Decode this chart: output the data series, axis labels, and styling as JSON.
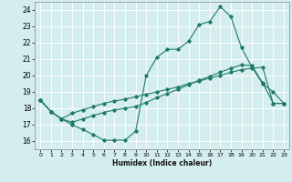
{
  "xlabel": "Humidex (Indice chaleur)",
  "bg_color": "#d4edee",
  "grid_color": "#ffffff",
  "line_color": "#1e7a6a",
  "xlim": [
    -0.5,
    23.5
  ],
  "ylim": [
    15.5,
    24.5
  ],
  "xticks": [
    0,
    1,
    2,
    3,
    4,
    5,
    6,
    7,
    8,
    9,
    10,
    11,
    12,
    13,
    14,
    15,
    16,
    17,
    18,
    19,
    20,
    21,
    22,
    23
  ],
  "yticks": [
    16,
    17,
    18,
    19,
    20,
    21,
    22,
    23,
    24
  ],
  "line1_x": [
    0,
    1,
    2,
    3,
    4,
    5,
    6,
    7,
    8,
    9,
    10,
    11,
    12,
    13,
    14,
    15,
    16,
    17,
    18,
    19,
    20,
    21,
    22,
    23
  ],
  "line1_y": [
    18.5,
    17.8,
    17.35,
    17.0,
    16.7,
    16.4,
    16.05,
    16.05,
    16.05,
    16.6,
    20.0,
    21.1,
    21.6,
    21.6,
    22.1,
    23.1,
    23.3,
    24.2,
    23.6,
    21.7,
    20.5,
    19.5,
    19.0,
    18.3
  ],
  "line2_x": [
    0,
    1,
    2,
    3,
    4,
    5,
    6,
    7,
    8,
    9,
    10,
    11,
    12,
    13,
    14,
    15,
    16,
    17,
    18,
    19,
    20,
    21,
    22,
    23
  ],
  "line2_y": [
    18.5,
    17.8,
    17.35,
    17.7,
    17.9,
    18.1,
    18.3,
    18.45,
    18.55,
    18.7,
    18.85,
    19.0,
    19.15,
    19.3,
    19.5,
    19.65,
    19.85,
    20.0,
    20.2,
    20.35,
    20.45,
    20.5,
    18.3,
    18.3
  ],
  "line3_x": [
    0,
    1,
    2,
    3,
    4,
    5,
    6,
    7,
    8,
    9,
    10,
    11,
    12,
    13,
    14,
    15,
    16,
    17,
    18,
    19,
    20,
    21,
    22,
    23
  ],
  "line3_y": [
    18.5,
    17.8,
    17.35,
    17.15,
    17.35,
    17.55,
    17.75,
    17.9,
    18.0,
    18.1,
    18.35,
    18.65,
    18.9,
    19.15,
    19.45,
    19.7,
    19.95,
    20.2,
    20.45,
    20.65,
    20.6,
    19.55,
    18.3,
    18.3
  ]
}
